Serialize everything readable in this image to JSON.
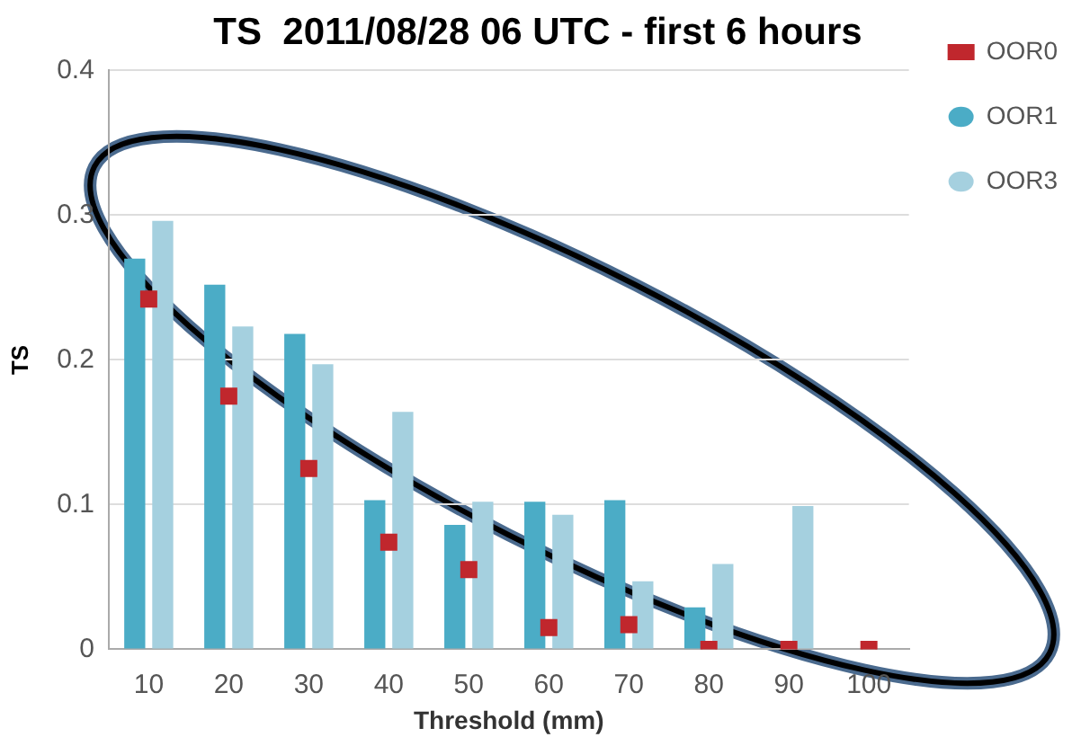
{
  "chart_data": {
    "type": "bar",
    "title": "TS  2011/08/28 06 UTC - first 6 hours",
    "xlabel": "Threshold (mm)",
    "ylabel": "TS",
    "categories": [
      "10",
      "20",
      "30",
      "40",
      "50",
      "60",
      "70",
      "80",
      "90",
      "100"
    ],
    "series": [
      {
        "name": "OOR1",
        "color": "#4bacc6",
        "values": [
          0.27,
          0.252,
          0.218,
          0.103,
          0.086,
          0.102,
          0.103,
          0.029,
          0,
          0
        ]
      },
      {
        "name": "OOR3",
        "color": "#a5d0df",
        "values": [
          0.296,
          0.223,
          0.197,
          0.164,
          0.102,
          0.093,
          0.047,
          0.059,
          0.099,
          0
        ]
      },
      {
        "name": "OOR0",
        "type": "scatter",
        "marker": "square",
        "color": "#c0272d",
        "x": [
          "10",
          "20",
          "30",
          "40",
          "50",
          "60",
          "70",
          "80",
          "90",
          "100"
        ],
        "values": [
          0.242,
          0.175,
          0.125,
          0.074,
          0.055,
          0.015,
          0.017,
          0,
          0,
          0
        ]
      }
    ],
    "ylim": [
      0,
      0.4
    ],
    "yticks": [
      0,
      0.1,
      0.2,
      0.3,
      0.4
    ],
    "grid": "y",
    "legend": "right"
  }
}
